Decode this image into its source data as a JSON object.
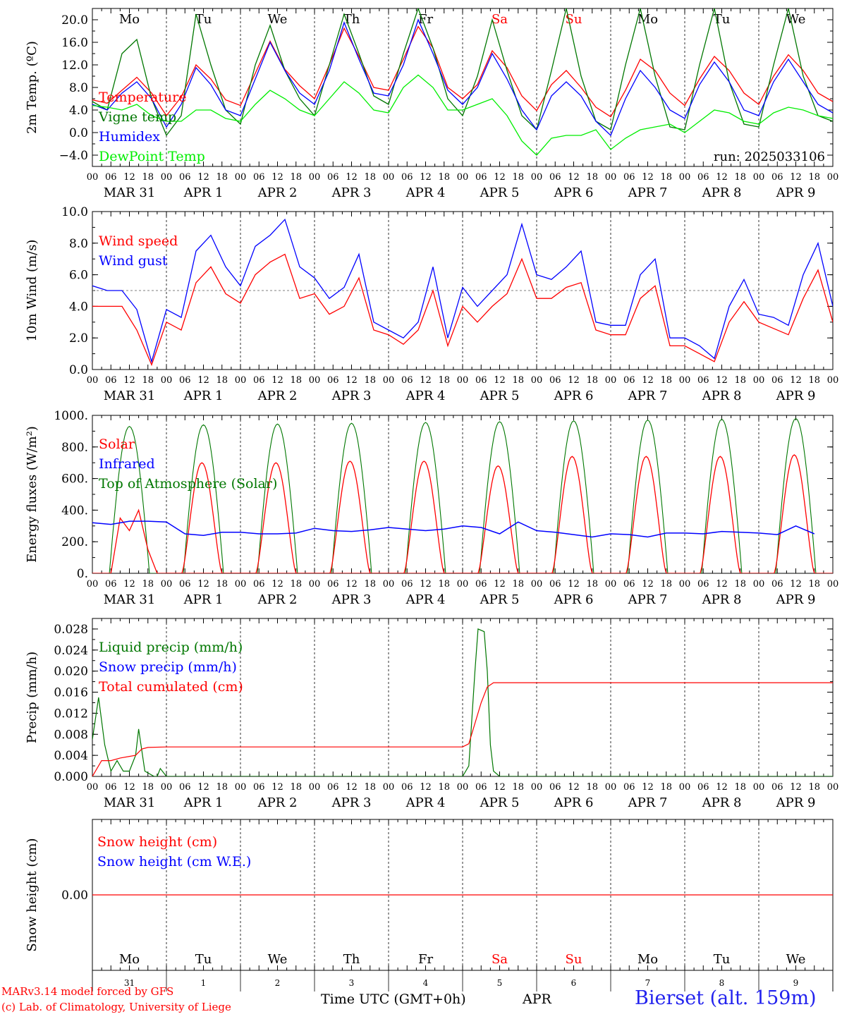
{
  "days": [
    {
      "dow": "Mo",
      "dom": "31",
      "month": "MAR",
      "weekend": false
    },
    {
      "dow": "Tu",
      "dom": "1",
      "month": "APR",
      "weekend": false
    },
    {
      "dow": "We",
      "dom": "2",
      "month": "APR",
      "weekend": false
    },
    {
      "dow": "Th",
      "dom": "3",
      "month": "APR",
      "weekend": false
    },
    {
      "dow": "Fr",
      "dom": "4",
      "month": "APR",
      "weekend": false
    },
    {
      "dow": "Sa",
      "dom": "5",
      "month": "APR",
      "weekend": true
    },
    {
      "dow": "Su",
      "dom": "6",
      "month": "APR",
      "weekend": true
    },
    {
      "dow": "Mo",
      "dom": "7",
      "month": "APR",
      "weekend": false
    },
    {
      "dow": "Tu",
      "dom": "8",
      "month": "APR",
      "weekend": false
    },
    {
      "dow": "We",
      "dom": "9",
      "month": "APR",
      "weekend": false
    }
  ],
  "hour_ticks": [
    "00",
    "06",
    "12",
    "18"
  ],
  "final_tick": "00",
  "colors": {
    "red": "#ff0000",
    "blue": "#0000ff",
    "green": "#007700",
    "lightgreen": "#00ee00",
    "axis": "#000000",
    "weekend": "#ff0000"
  },
  "chart_data": [
    {
      "id": "temperature",
      "type": "line",
      "ylabel": "2m Temp. (ºC)",
      "ylim": [
        -6,
        22
      ],
      "yticks": [
        -4,
        0,
        4,
        8,
        12,
        16,
        20
      ],
      "yticklabels": [
        "−4.0",
        "0.0",
        "4.0",
        "8.0",
        "12.0",
        "16.0",
        "20.0"
      ],
      "show_day_names": true,
      "annotation": "run: 2025033106",
      "x_hours_step": 6,
      "series": [
        {
          "name": "Temperature",
          "color": "red",
          "values": [
            5.8,
            5.2,
            7.5,
            9.8,
            7.0,
            3.0,
            6.3,
            12.0,
            9.5,
            5.8,
            4.8,
            10.5,
            16.2,
            11.2,
            8.3,
            6.0,
            12.0,
            18.5,
            13.5,
            8.0,
            7.5,
            13.0,
            18.8,
            15.0,
            8.0,
            6.0,
            8.5,
            14.5,
            11.5,
            6.5,
            3.9,
            8.5,
            11.0,
            8.0,
            4.5,
            2.8,
            7.5,
            13.0,
            11.0,
            7.0,
            4.8,
            9.5,
            13.5,
            11.0,
            7.0,
            5.0,
            10.0,
            13.8,
            11.0,
            7.0,
            5.5
          ]
        },
        {
          "name": "Vigne temp",
          "color": "green",
          "values": [
            5.5,
            4.0,
            14.0,
            16.5,
            6.0,
            -0.5,
            3.0,
            21.0,
            12.0,
            4.0,
            1.5,
            12.0,
            19.0,
            11.0,
            6.0,
            3.0,
            12.0,
            21.0,
            14.0,
            6.5,
            5.0,
            14.0,
            22.0,
            15.0,
            6.0,
            3.0,
            10.0,
            20.0,
            11.0,
            3.0,
            0.5,
            11.0,
            22.0,
            10.0,
            2.0,
            0.5,
            12.0,
            22.0,
            10.0,
            1.0,
            0.5,
            12.0,
            22.0,
            9.0,
            1.5,
            1.0,
            12.0,
            22.0,
            10.0,
            3.0,
            2.0
          ]
        },
        {
          "name": "Humidex",
          "color": "blue",
          "values": [
            5.0,
            4.0,
            7.0,
            9.0,
            6.0,
            1.0,
            5.0,
            11.5,
            8.5,
            4.0,
            3.0,
            9.5,
            16.0,
            11.0,
            7.0,
            5.0,
            11.0,
            19.5,
            13.0,
            7.0,
            6.5,
            12.0,
            20.0,
            14.0,
            7.5,
            5.0,
            8.0,
            14.0,
            9.5,
            4.0,
            0.5,
            6.5,
            9.0,
            6.5,
            2.0,
            -0.5,
            6.0,
            11.0,
            8.0,
            4.0,
            2.5,
            8.5,
            12.5,
            9.0,
            4.0,
            3.0,
            9.0,
            13.0,
            9.0,
            5.0,
            3.5
          ]
        },
        {
          "name": "DewPoint Temp",
          "color": "lightgreen",
          "values": [
            4.8,
            4.5,
            4.0,
            5.0,
            3.0,
            2.0,
            2.0,
            4.0,
            4.0,
            2.5,
            2.0,
            5.0,
            7.5,
            6.0,
            4.0,
            3.0,
            6.0,
            9.0,
            7.0,
            4.0,
            3.5,
            8.0,
            10.2,
            8.0,
            4.0,
            4.0,
            5.0,
            6.0,
            3.0,
            -1.5,
            -4.0,
            -1.0,
            -0.5,
            -0.5,
            0.5,
            -3.0,
            -1.0,
            0.5,
            1.0,
            1.5,
            0.0,
            2.0,
            4.0,
            3.5,
            2.0,
            1.5,
            3.5,
            4.5,
            4.0,
            3.0,
            2.5
          ]
        }
      ]
    },
    {
      "id": "wind",
      "type": "line",
      "ylabel": "10m Wind (m/s)",
      "ylim": [
        0,
        10
      ],
      "yticks": [
        0,
        2,
        4,
        6,
        8,
        10
      ],
      "yticklabels": [
        "0.0",
        "2.0",
        "4.0",
        "6.0",
        "8.0",
        "10.0"
      ],
      "hline": 5,
      "show_day_names": false,
      "x_hours_step": 6,
      "series": [
        {
          "name": "Wind speed",
          "color": "red",
          "values": [
            4.0,
            4.0,
            4.0,
            2.5,
            0.3,
            3.0,
            2.5,
            5.5,
            6.5,
            4.8,
            4.2,
            6.0,
            6.8,
            7.3,
            4.5,
            4.8,
            3.5,
            4.0,
            5.8,
            2.5,
            2.2,
            1.6,
            2.5,
            5.0,
            1.5,
            4.0,
            3.0,
            4.0,
            4.8,
            7.0,
            4.5,
            4.5,
            5.2,
            5.5,
            2.5,
            2.2,
            2.2,
            4.5,
            5.3,
            1.5,
            1.5,
            1.0,
            0.5,
            3.0,
            4.3,
            3.0,
            2.6,
            2.2,
            4.5,
            6.3,
            3.0
          ]
        },
        {
          "name": "Wind gust",
          "color": "blue",
          "values": [
            5.3,
            5.0,
            5.0,
            3.8,
            0.5,
            3.8,
            3.3,
            7.5,
            8.5,
            6.5,
            5.3,
            7.8,
            8.5,
            9.5,
            6.5,
            5.8,
            4.5,
            5.2,
            7.3,
            3.0,
            2.5,
            2.0,
            3.0,
            6.5,
            2.0,
            5.2,
            4.0,
            5.0,
            6.0,
            9.2,
            6.0,
            5.7,
            6.5,
            7.5,
            3.0,
            2.8,
            2.8,
            6.0,
            7.0,
            2.0,
            2.0,
            1.5,
            0.7,
            4.0,
            5.7,
            3.5,
            3.3,
            2.8,
            6.0,
            8.0,
            4.0
          ]
        }
      ]
    },
    {
      "id": "energy",
      "type": "line",
      "ylabel": "Energy fluxes (W/m²)",
      "ylim": [
        0,
        1000
      ],
      "yticks": [
        0,
        200,
        400,
        600,
        800,
        1000
      ],
      "yticklabels": [
        "0.",
        "200.",
        "400.",
        "600.",
        "800.",
        "1000."
      ],
      "show_day_names": false,
      "x_hours_step": 6,
      "series": [
        {
          "name": "Solar",
          "color": "red",
          "values": [
            0,
            0,
            0,
            350,
            270,
            400,
            150,
            0,
            0,
            0,
            0,
            0,
            0,
            0,
            0,
            0,
            0,
            0,
            0,
            0,
            0,
            0,
            0,
            0,
            0,
            0,
            0,
            0,
            0,
            0,
            0,
            0,
            0,
            0,
            0,
            0,
            0,
            0,
            0,
            0,
            0,
            0,
            0,
            0,
            0,
            0,
            0,
            0,
            0,
            0,
            0
          ]
        },
        {
          "name": "Infrared",
          "color": "blue",
          "values": [
            320,
            310,
            330,
            330,
            325,
            250,
            240,
            260,
            260,
            250,
            250,
            255,
            285,
            270,
            265,
            275,
            290,
            280,
            270,
            280,
            300,
            290,
            250,
            325,
            270,
            260,
            245,
            230,
            250,
            245,
            230,
            255,
            255,
            250,
            265,
            260,
            255,
            245,
            300,
            250
          ]
        },
        {
          "name": "Top of Atmosphere (Solar)",
          "color": "green",
          "values": []
        }
      ],
      "daily_toa_peak": [
        930,
        940,
        945,
        950,
        955,
        960,
        965,
        970,
        975,
        980
      ],
      "daily_solar_peak": [
        0,
        700,
        700,
        710,
        710,
        680,
        740,
        740,
        740,
        750
      ],
      "solar_window_hours": [
        5,
        18
      ],
      "toa_window_hours": [
        5.5,
        18.5
      ]
    },
    {
      "id": "precip",
      "type": "line",
      "ylabel": "Precip (mm/h)",
      "ylim": [
        0,
        0.03
      ],
      "yticks": [
        0,
        0.004,
        0.008,
        0.012,
        0.016,
        0.02,
        0.024,
        0.028
      ],
      "yticklabels": [
        "0.000",
        "0.004",
        "0.008",
        "0.012",
        "0.016",
        "0.020",
        "0.024",
        "0.028"
      ],
      "show_day_names": false,
      "x_hours_step": 1,
      "series": [
        {
          "name": "Liquid precip (mm/h)",
          "color": "green",
          "points": [
            [
              0,
              0.007
            ],
            [
              2,
              0.015
            ],
            [
              4,
              0.006
            ],
            [
              6,
              0.001
            ],
            [
              8,
              0.003
            ],
            [
              10,
              0.001
            ],
            [
              12,
              0.001
            ],
            [
              14,
              0.004
            ],
            [
              15,
              0.009
            ],
            [
              17,
              0.001
            ],
            [
              20,
              0.0
            ],
            [
              21,
              0.0
            ],
            [
              22,
              0.0015
            ],
            [
              24,
              0.0
            ],
            [
              120,
              0.0
            ],
            [
              122,
              0.002
            ],
            [
              124,
              0.02
            ],
            [
              125,
              0.028
            ],
            [
              127,
              0.0275
            ],
            [
              128,
              0.02
            ],
            [
              129,
              0.006
            ],
            [
              130,
              0.001
            ],
            [
              132,
              0.0
            ],
            [
              240,
              0.0
            ]
          ]
        },
        {
          "name": "Snow precip (mm/h)",
          "color": "blue",
          "points": []
        },
        {
          "name": "Total cumulated (cm)",
          "color": "red",
          "points": [
            [
              0,
              0.0
            ],
            [
              3,
              0.003
            ],
            [
              6,
              0.003
            ],
            [
              9,
              0.0035
            ],
            [
              12,
              0.0038
            ],
            [
              14,
              0.004
            ],
            [
              16,
              0.0052
            ],
            [
              18,
              0.0055
            ],
            [
              24,
              0.0056
            ],
            [
              72,
              0.0056
            ],
            [
              118,
              0.0056
            ],
            [
              120,
              0.0056
            ],
            [
              122,
              0.0062
            ],
            [
              126,
              0.014
            ],
            [
              128,
              0.017
            ],
            [
              130,
              0.0178
            ],
            [
              240,
              0.0178
            ]
          ]
        }
      ]
    },
    {
      "id": "snow",
      "type": "line",
      "ylabel": "Snow height (cm)",
      "ylim": [
        -1,
        1
      ],
      "yticks": [
        0
      ],
      "yticklabels": [
        "0.00"
      ],
      "show_day_names": true,
      "x_hours_step": 6,
      "series": [
        {
          "name": "Snow height (cm)",
          "color": "red",
          "values": [
            0,
            0
          ]
        },
        {
          "name": "Snow height (cm W.E.)",
          "color": "blue",
          "values": []
        }
      ]
    }
  ],
  "footer": {
    "credit_line1": "MARv3.14 model forced by GFS",
    "credit_line2": "(c) Lab. of Climatology, University of Liege",
    "x_title": "Time UTC (GMT+0h)",
    "month_label": "APR",
    "station": "Bierset (alt. 159m)"
  }
}
